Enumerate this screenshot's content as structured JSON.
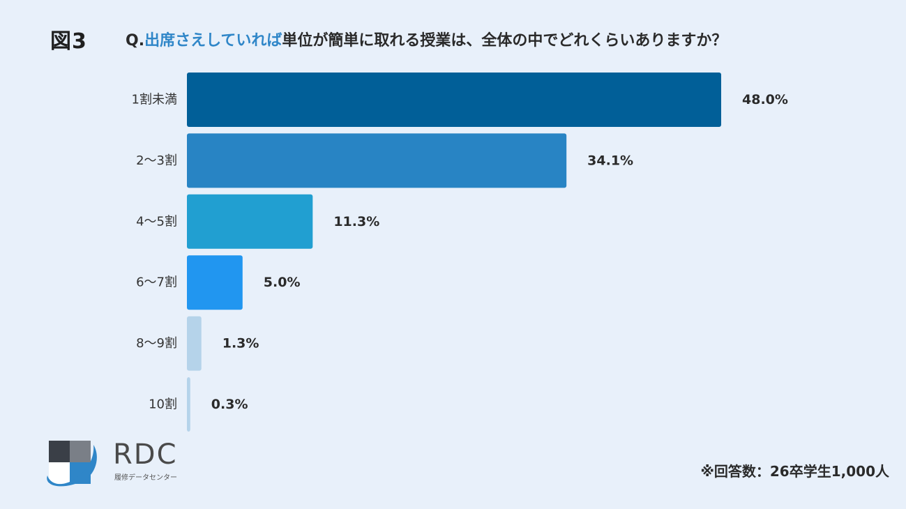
{
  "header": {
    "figure_label": "図3",
    "question_prefix": "Q.",
    "question_highlight": "出席さえしていれば",
    "question_rest": "単位が簡単に取れる授業は、全体の中でどれくらいありますか？"
  },
  "chart_data": {
    "type": "bar",
    "orientation": "horizontal",
    "categories": [
      "1割未満",
      "2〜3割",
      "4〜5割",
      "6〜7割",
      "8〜9割",
      "10割"
    ],
    "values": [
      48.0,
      34.1,
      11.3,
      5.0,
      1.3,
      0.3
    ],
    "value_labels": [
      "48.0%",
      "34.1%",
      "11.3%",
      "5.0%",
      "1.3%",
      "0.3%"
    ],
    "unit": "%",
    "xlim": [
      0,
      48.0
    ],
    "grid": false,
    "legend": "none",
    "bar_colors": [
      "#015f98",
      "#2884c4",
      "#219fd1",
      "#2196f0",
      "#b5d3ea",
      "#b5d3ea"
    ]
  },
  "logo": {
    "name": "RDC",
    "subtitle": "履修データセンター"
  },
  "footnote": "※回答数：26卒学生1,000人"
}
